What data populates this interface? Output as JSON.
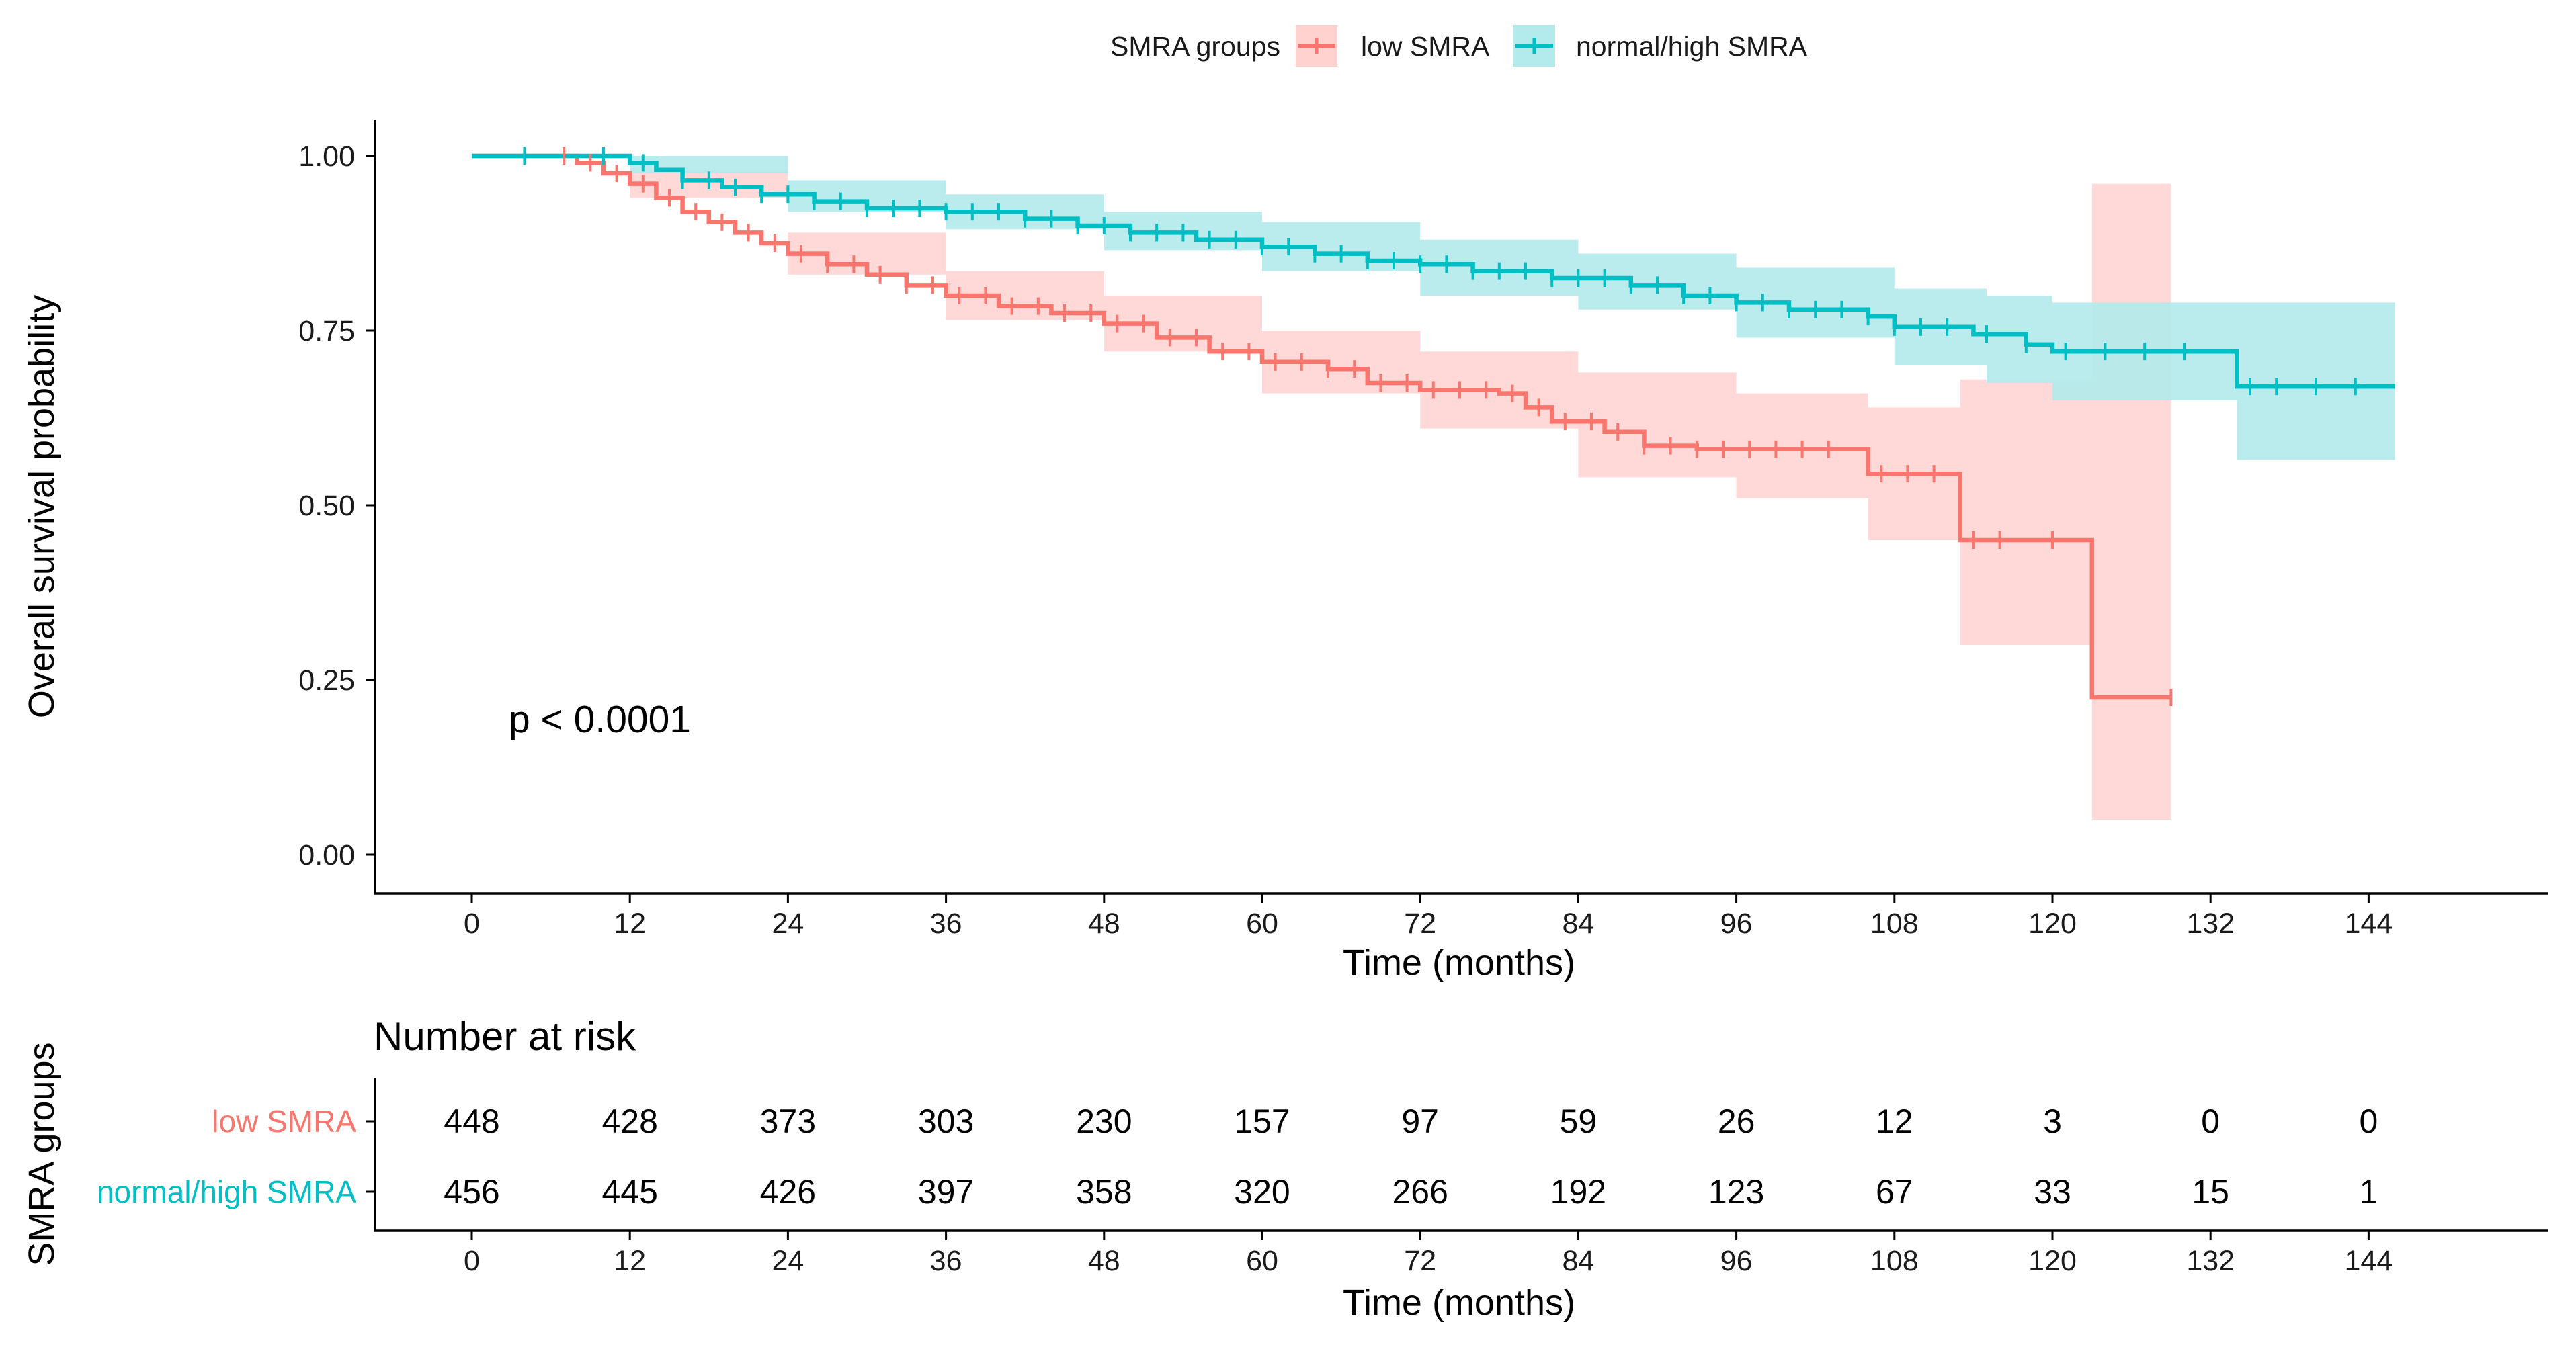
{
  "chart_data": [
    {
      "type": "line",
      "subtype": "kaplan-meier",
      "title": "",
      "xlabel": "Time (months)",
      "ylabel": "Overall survival probability",
      "xlim": [
        -7.5,
        157.5
      ],
      "ylim": [
        -0.05,
        1.05
      ],
      "xticks": [
        "0",
        "12",
        "24",
        "36",
        "48",
        "60",
        "72",
        "84",
        "96",
        "108",
        "120",
        "132",
        "144"
      ],
      "yticks": [
        "0.00",
        "0.25",
        "0.50",
        "0.75",
        "1.00"
      ],
      "legend": {
        "title": "SMRA groups",
        "position": "top",
        "entries": [
          "low SMRA",
          "normal/high SMRA"
        ]
      },
      "annotation": "p < 0.0001",
      "series": [
        {
          "name": "low SMRA",
          "color": "#F8766D",
          "band_color": "#FFD2D0",
          "step": [
            [
              0,
              1.0
            ],
            [
              6,
              1.0
            ],
            [
              8,
              0.99
            ],
            [
              10,
              0.975
            ],
            [
              12,
              0.96
            ],
            [
              14,
              0.94
            ],
            [
              16,
              0.92
            ],
            [
              18,
              0.905
            ],
            [
              20,
              0.89
            ],
            [
              22,
              0.875
            ],
            [
              24,
              0.86
            ],
            [
              27,
              0.845
            ],
            [
              30,
              0.83
            ],
            [
              33,
              0.815
            ],
            [
              36,
              0.8
            ],
            [
              40,
              0.785
            ],
            [
              44,
              0.775
            ],
            [
              48,
              0.76
            ],
            [
              52,
              0.74
            ],
            [
              56,
              0.72
            ],
            [
              60,
              0.705
            ],
            [
              65,
              0.695
            ],
            [
              68,
              0.675
            ],
            [
              72,
              0.665
            ],
            [
              78,
              0.66
            ],
            [
              80,
              0.64
            ],
            [
              82,
              0.62
            ],
            [
              86,
              0.605
            ],
            [
              89,
              0.585
            ],
            [
              93,
              0.58
            ],
            [
              106,
              0.545
            ],
            [
              113,
              0.45
            ],
            [
              123,
              0.225
            ],
            [
              129,
              0.225
            ]
          ],
          "ci": [
            [
              0,
              1.0,
              1.0
            ],
            [
              12,
              0.94,
              0.98
            ],
            [
              24,
              0.83,
              0.89
            ],
            [
              36,
              0.765,
              0.835
            ],
            [
              48,
              0.72,
              0.8
            ],
            [
              60,
              0.66,
              0.75
            ],
            [
              72,
              0.61,
              0.72
            ],
            [
              84,
              0.54,
              0.69
            ],
            [
              96,
              0.51,
              0.66
            ],
            [
              106,
              0.51,
              0.66
            ],
            [
              106,
              0.45,
              0.64
            ],
            [
              113,
              0.45,
              0.64
            ],
            [
              113,
              0.3,
              0.68
            ],
            [
              123,
              0.3,
              0.68
            ],
            [
              123,
              0.05,
              0.96
            ],
            [
              129,
              0.05,
              0.96
            ]
          ],
          "censor_times": [
            7,
            9,
            11,
            13,
            15,
            17,
            19,
            21,
            23,
            25,
            27,
            29,
            31,
            33,
            35,
            37,
            39,
            41,
            43,
            45,
            47,
            49,
            51,
            53,
            55,
            57,
            59,
            61,
            63,
            65,
            67,
            69,
            71,
            73,
            75,
            77,
            79,
            81,
            83,
            85,
            87,
            89,
            91,
            93,
            95,
            97,
            99,
            101,
            103,
            107,
            109,
            111,
            114,
            116,
            120,
            129
          ]
        },
        {
          "name": "normal/high SMRA",
          "color": "#00BFC4",
          "band_color": "#B3EAEC",
          "step": [
            [
              0,
              1.0
            ],
            [
              9,
              1.0
            ],
            [
              12,
              0.99
            ],
            [
              14,
              0.98
            ],
            [
              16,
              0.965
            ],
            [
              19,
              0.955
            ],
            [
              22,
              0.945
            ],
            [
              26,
              0.935
            ],
            [
              30,
              0.925
            ],
            [
              36,
              0.92
            ],
            [
              42,
              0.91
            ],
            [
              46,
              0.9
            ],
            [
              50,
              0.89
            ],
            [
              55,
              0.88
            ],
            [
              60,
              0.87
            ],
            [
              64,
              0.86
            ],
            [
              68,
              0.85
            ],
            [
              72,
              0.845
            ],
            [
              76,
              0.835
            ],
            [
              82,
              0.825
            ],
            [
              88,
              0.815
            ],
            [
              92,
              0.8
            ],
            [
              96,
              0.79
            ],
            [
              100,
              0.78
            ],
            [
              106,
              0.77
            ],
            [
              108,
              0.755
            ],
            [
              114,
              0.745
            ],
            [
              118,
              0.73
            ],
            [
              120,
              0.72
            ],
            [
              134,
              0.67
            ],
            [
              146,
              0.67
            ]
          ],
          "ci": [
            [
              0,
              1.0,
              1.0
            ],
            [
              12,
              0.975,
              1.0
            ],
            [
              24,
              0.92,
              0.965
            ],
            [
              36,
              0.895,
              0.945
            ],
            [
              48,
              0.865,
              0.92
            ],
            [
              60,
              0.835,
              0.905
            ],
            [
              72,
              0.8,
              0.88
            ],
            [
              84,
              0.78,
              0.86
            ],
            [
              96,
              0.74,
              0.84
            ],
            [
              108,
              0.7,
              0.81
            ],
            [
              115,
              0.675,
              0.8
            ],
            [
              120,
              0.65,
              0.79
            ],
            [
              134,
              0.65,
              0.79
            ],
            [
              134,
              0.565,
              0.79
            ],
            [
              146,
              0.565,
              0.79
            ]
          ],
          "censor_times": [
            4,
            10,
            13,
            16,
            18,
            20,
            22,
            24,
            26,
            28,
            30,
            32,
            34,
            36,
            38,
            40,
            42,
            44,
            46,
            48,
            50,
            52,
            54,
            56,
            58,
            60,
            62,
            64,
            66,
            68,
            70,
            72,
            74,
            76,
            78,
            80,
            82,
            84,
            86,
            88,
            90,
            92,
            94,
            96,
            98,
            100,
            102,
            104,
            106,
            108,
            110,
            112,
            115,
            118,
            121,
            124,
            127,
            130,
            135,
            137,
            140,
            143
          ]
        }
      ]
    },
    {
      "type": "table",
      "title": "Number at risk",
      "xlabel": "Time (months)",
      "ylabel": "SMRA groups",
      "x": [
        0,
        12,
        24,
        36,
        48,
        60,
        72,
        84,
        96,
        108,
        120,
        132,
        144
      ],
      "rows": [
        {
          "name": "low SMRA",
          "color": "#F8766D",
          "values": [
            "448",
            "428",
            "373",
            "303",
            "230",
            "157",
            "97",
            "59",
            "26",
            "12",
            "3",
            "0",
            "0"
          ]
        },
        {
          "name": "normal/high SMRA",
          "color": "#00BFC4",
          "values": [
            "456",
            "445",
            "426",
            "397",
            "358",
            "320",
            "266",
            "192",
            "123",
            "67",
            "33",
            "15",
            "1"
          ]
        }
      ]
    }
  ]
}
